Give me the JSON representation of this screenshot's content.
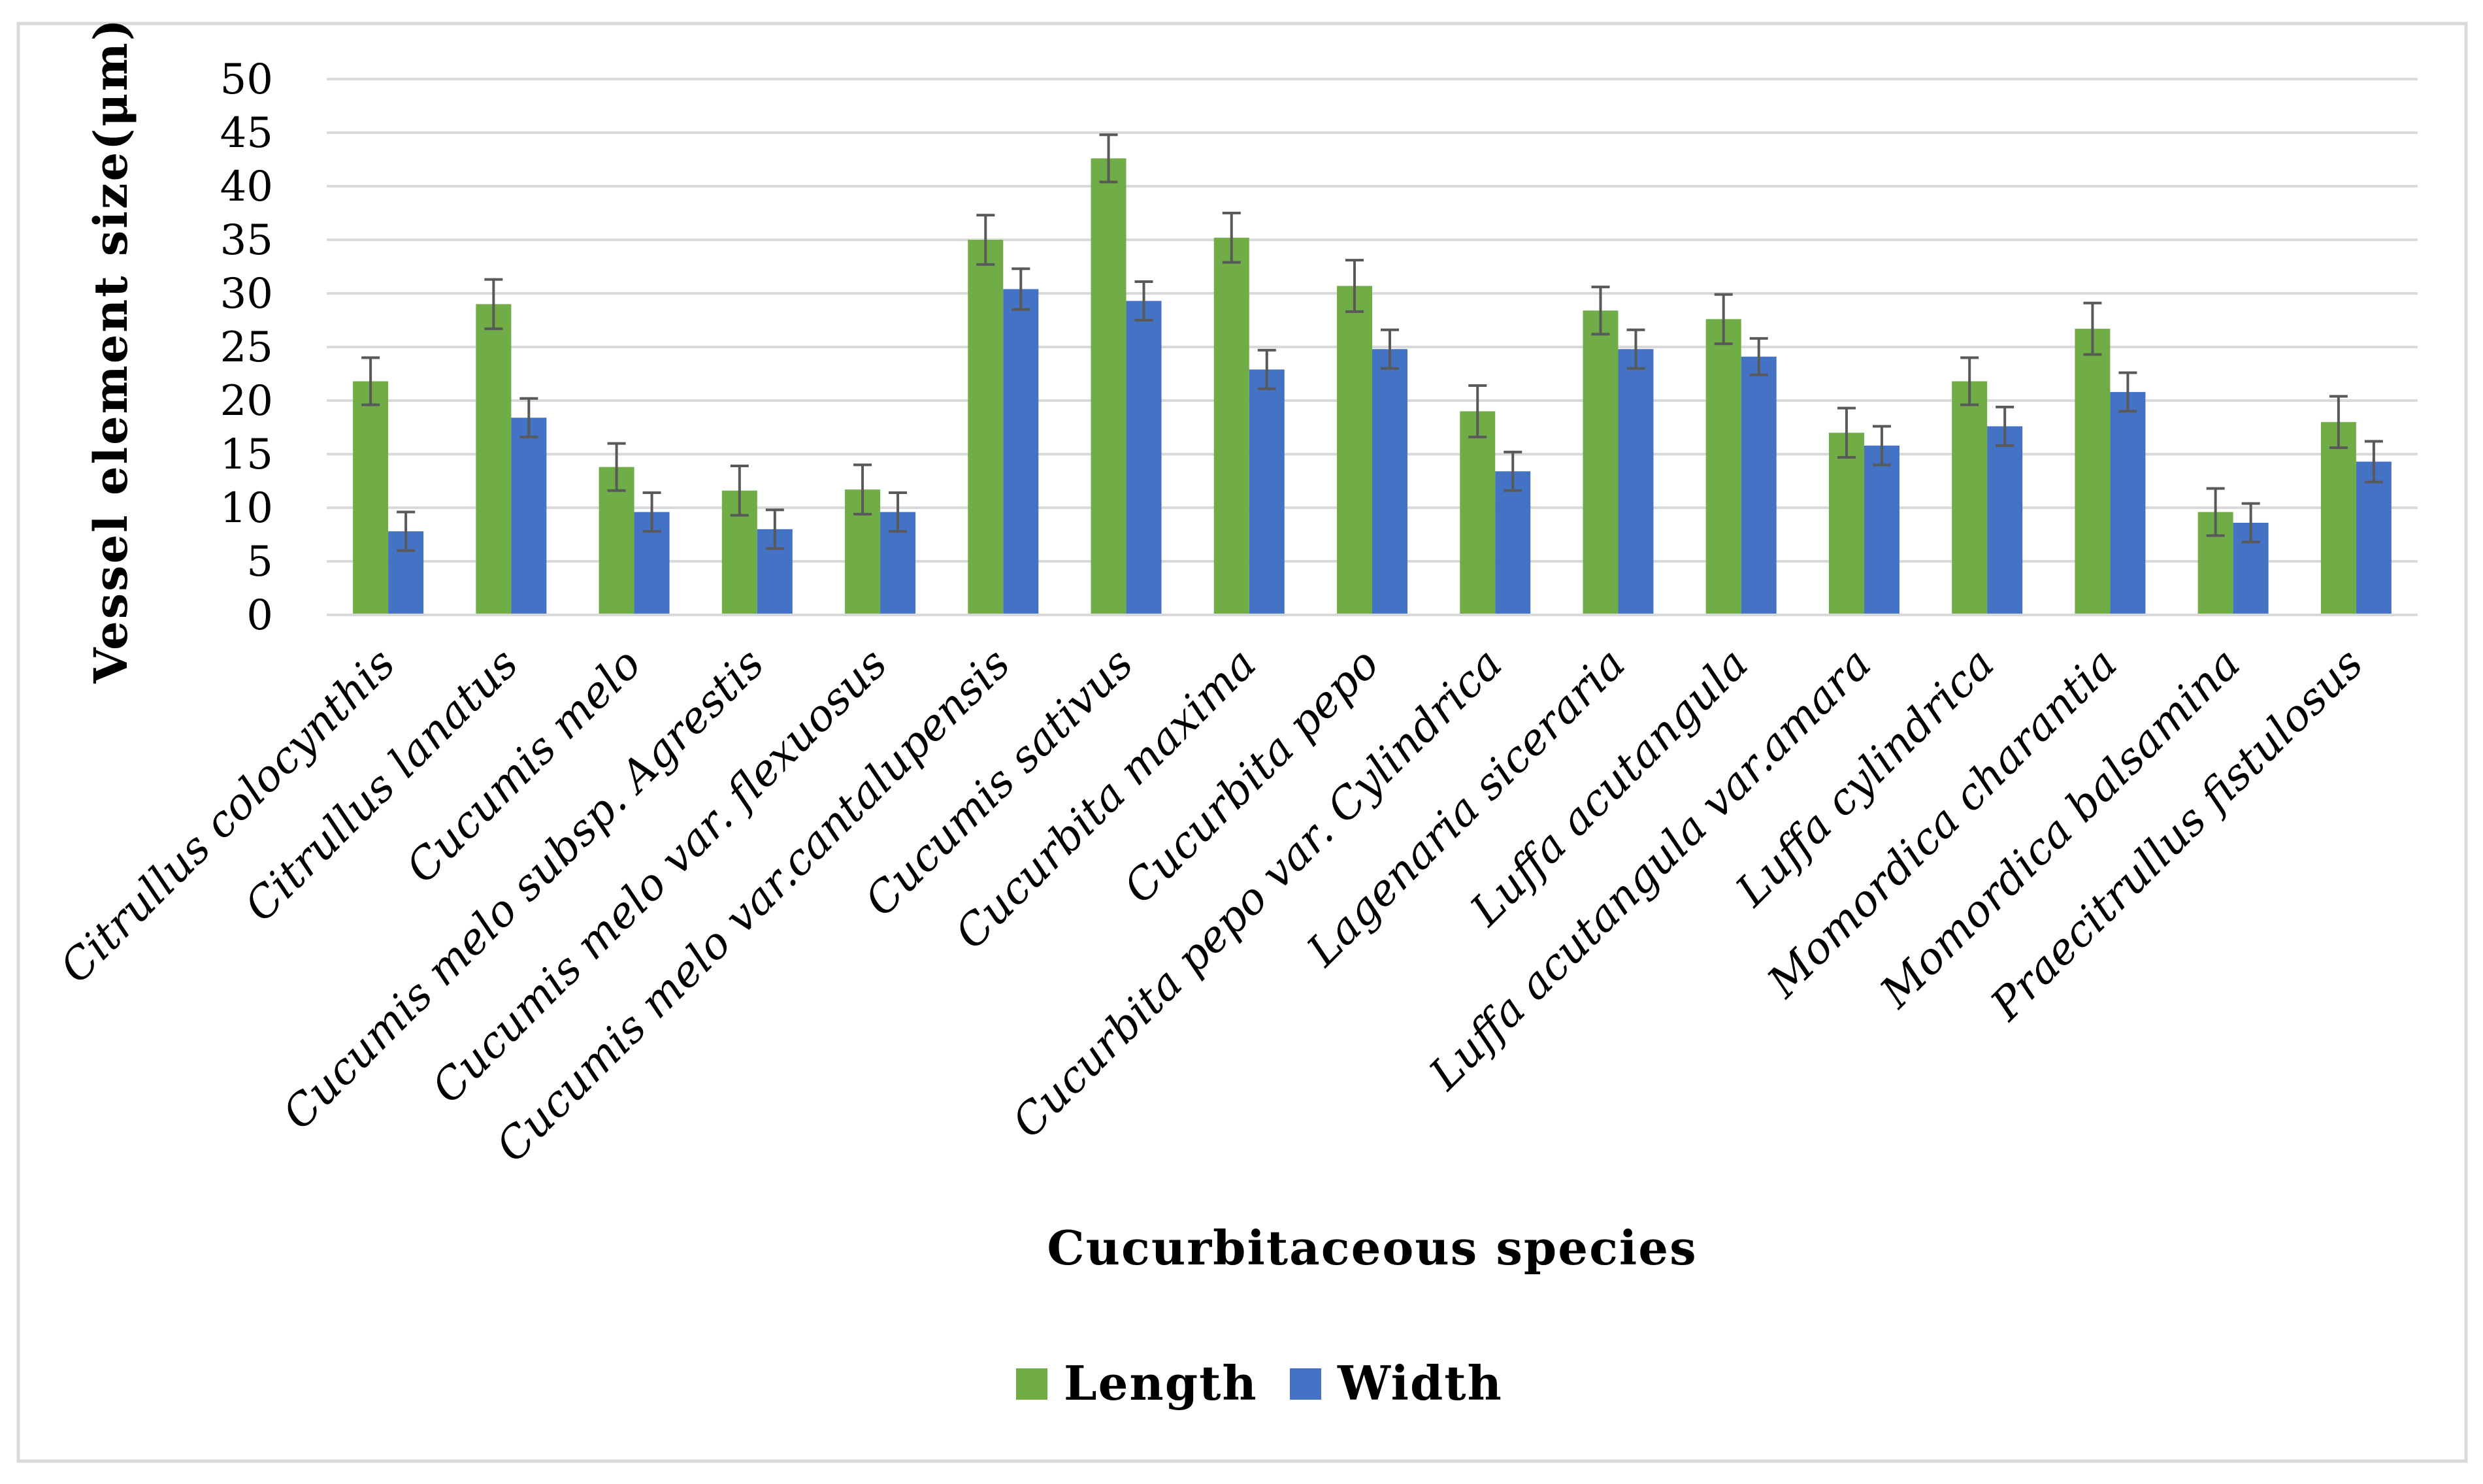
{
  "chart_data": {
    "type": "bar",
    "title": "",
    "xlabel": "Cucurbitaceous species",
    "ylabel": "Vessel element size(μm)",
    "ylim": [
      0,
      50
    ],
    "yticks": [
      0,
      5,
      10,
      15,
      20,
      25,
      30,
      35,
      40,
      45,
      50
    ],
    "grid": true,
    "legend_position": "bottom",
    "categories": [
      "Citrullus colocynthis",
      "Citrullus lanatus",
      "Cucumis melo",
      "Cucumis melo subsp. Agrestis",
      "Cucumis melo var. flexuosus",
      "Cucumis melo var.cantalupensis",
      "Cucumis sativus",
      "Cucurbita maxima",
      "Cucurbita pepo",
      "Cucurbita pepo var. Cylindrica",
      "Lagenaria siceraria",
      "Luffa acutangula",
      "Luffa acutangula var.amara",
      "Luffa cylindrica",
      "Momordica charantia",
      "Momordica balsamina",
      "Praecitrullus fistulosus"
    ],
    "series": [
      {
        "name": "Length",
        "color": "#70AD47",
        "values": [
          21.8,
          29.0,
          13.8,
          11.6,
          11.7,
          35.0,
          42.6,
          35.2,
          30.7,
          19.0,
          28.4,
          27.6,
          17.0,
          21.8,
          26.7,
          9.6,
          18.0
        ],
        "errors": [
          2.2,
          2.3,
          2.2,
          2.3,
          2.3,
          2.3,
          2.2,
          2.3,
          2.4,
          2.4,
          2.2,
          2.3,
          2.3,
          2.2,
          2.4,
          2.2,
          2.4
        ]
      },
      {
        "name": "Width",
        "color": "#4472C4",
        "values": [
          7.8,
          18.4,
          9.6,
          8.0,
          9.6,
          30.4,
          29.3,
          22.9,
          24.8,
          13.4,
          24.8,
          24.1,
          15.8,
          17.6,
          20.8,
          8.6,
          14.3
        ],
        "errors": [
          1.8,
          1.8,
          1.8,
          1.8,
          1.8,
          1.9,
          1.8,
          1.8,
          1.8,
          1.8,
          1.8,
          1.7,
          1.8,
          1.8,
          1.8,
          1.8,
          1.9
        ]
      }
    ]
  }
}
